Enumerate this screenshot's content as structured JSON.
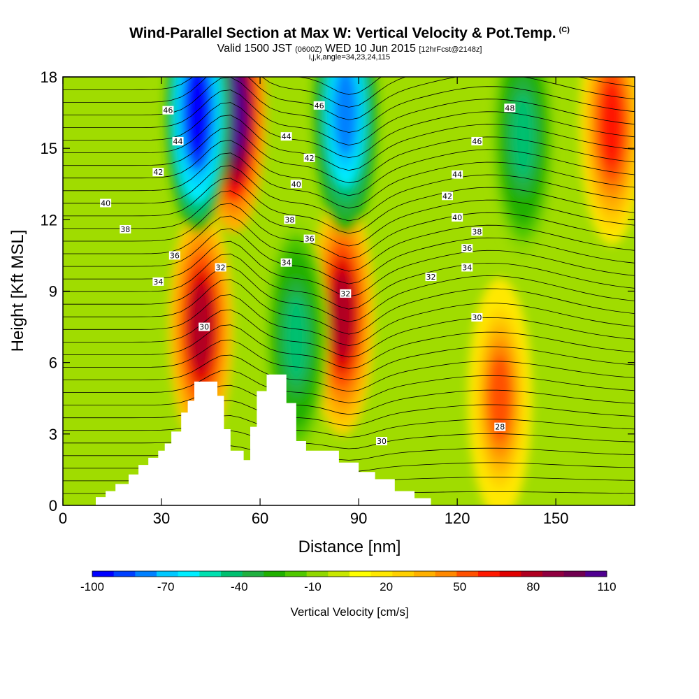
{
  "header": {
    "title": "Wind-Parallel Section at Max W: Vertical Velocity & Pot.Temp.",
    "title_mark": "(C)",
    "subtitle_valid": "Valid 1500 JST",
    "subtitle_utc": "(0600Z)",
    "subtitle_date": "WED 10 Jun 2015",
    "subtitle_fcst": "[12hrFcst@2148z]",
    "subinfo": "i,j,k,angle=34,23,24,115"
  },
  "chart_data": {
    "type": "heatmap",
    "xlabel": "Distance [nm]",
    "ylabel": "Height [Kft MSL]",
    "xlim": [
      0,
      174
    ],
    "ylim": [
      0,
      18
    ],
    "x_ticks": [
      "0",
      "30",
      "60",
      "90",
      "120",
      "150"
    ],
    "y_ticks": [
      "0",
      "3",
      "6",
      "9",
      "12",
      "15",
      "18"
    ],
    "colorbar": {
      "label": "Vertical Velocity [cm/s]",
      "tick_labels": [
        "-100",
        "-70",
        "-40",
        "-10",
        "20",
        "50",
        "80",
        "110"
      ],
      "colors": [
        "#0000ff",
        "#0040ff",
        "#0080ff",
        "#00c8ff",
        "#00eeff",
        "#00e0b0",
        "#00c070",
        "#20b040",
        "#20b000",
        "#50c800",
        "#90d800",
        "#c8e800",
        "#ffff00",
        "#ffe800",
        "#ffd000",
        "#ffb000",
        "#ff8800",
        "#ff5000",
        "#ff1800",
        "#e00000",
        "#b00020",
        "#900040",
        "#700050",
        "#500090"
      ]
    },
    "terrain_kft": [
      [
        0,
        0
      ],
      [
        10,
        0
      ],
      [
        10,
        0.35
      ],
      [
        13,
        0.35
      ],
      [
        13,
        0.6
      ],
      [
        16,
        0.6
      ],
      [
        16,
        0.9
      ],
      [
        20,
        0.9
      ],
      [
        20,
        1.3
      ],
      [
        23,
        1.3
      ],
      [
        23,
        1.7
      ],
      [
        26,
        1.7
      ],
      [
        26,
        2.0
      ],
      [
        29,
        2.0
      ],
      [
        29,
        2.3
      ],
      [
        31,
        2.3
      ],
      [
        31,
        2.6
      ],
      [
        33,
        2.6
      ],
      [
        33,
        3.1
      ],
      [
        36,
        3.1
      ],
      [
        36,
        3.9
      ],
      [
        38,
        3.9
      ],
      [
        38,
        4.4
      ],
      [
        40,
        4.4
      ],
      [
        40,
        5.2
      ],
      [
        47,
        5.2
      ],
      [
        47,
        4.6
      ],
      [
        49,
        4.6
      ],
      [
        49,
        3.2
      ],
      [
        51,
        3.2
      ],
      [
        51,
        2.3
      ],
      [
        55,
        2.3
      ],
      [
        55,
        1.9
      ],
      [
        57,
        1.9
      ],
      [
        57,
        3.3
      ],
      [
        59,
        3.3
      ],
      [
        59,
        4.8
      ],
      [
        62,
        4.8
      ],
      [
        62,
        5.5
      ],
      [
        68,
        5.5
      ],
      [
        68,
        4.3
      ],
      [
        71,
        4.3
      ],
      [
        71,
        2.7
      ],
      [
        74,
        2.7
      ],
      [
        74,
        2.3
      ],
      [
        78,
        2.3
      ],
      [
        78,
        2.3
      ],
      [
        84,
        2.3
      ],
      [
        84,
        1.8
      ],
      [
        90,
        1.8
      ],
      [
        90,
        1.4
      ],
      [
        95,
        1.4
      ],
      [
        95,
        1.1
      ],
      [
        101,
        1.1
      ],
      [
        101,
        0.6
      ],
      [
        107,
        0.6
      ],
      [
        107,
        0.3
      ],
      [
        112,
        0.3
      ],
      [
        112,
        0
      ],
      [
        174,
        0
      ]
    ],
    "updraft_cores": [
      {
        "x": 42,
        "z": 7.5,
        "w": 80
      },
      {
        "x": 52,
        "z": 16.5,
        "w": 110
      },
      {
        "x": 85,
        "z": 8.0,
        "w": 80
      },
      {
        "x": 133,
        "z": 4.5,
        "w": 50
      },
      {
        "x": 167,
        "z": 16.0,
        "w": 60
      }
    ],
    "downdraft_cores": [
      {
        "x": 41,
        "z": 16.5,
        "w": -100
      },
      {
        "x": 86,
        "z": 16.5,
        "w": -80
      },
      {
        "x": 71,
        "z": 7.0,
        "w": -40
      },
      {
        "x": 140,
        "z": 15.5,
        "w": -40
      }
    ],
    "theta_labels": [
      {
        "text": "46",
        "x": 32,
        "z": 16.6
      },
      {
        "text": "44",
        "x": 35,
        "z": 15.3
      },
      {
        "text": "42",
        "x": 29,
        "z": 14.0
      },
      {
        "text": "40",
        "x": 13,
        "z": 12.7
      },
      {
        "text": "38",
        "x": 19,
        "z": 11.6
      },
      {
        "text": "36",
        "x": 34,
        "z": 10.5
      },
      {
        "text": "34",
        "x": 29,
        "z": 9.4
      },
      {
        "text": "32",
        "x": 48,
        "z": 10.0
      },
      {
        "text": "30",
        "x": 43,
        "z": 7.5
      },
      {
        "text": "46",
        "x": 78,
        "z": 16.8
      },
      {
        "text": "44",
        "x": 68,
        "z": 15.5
      },
      {
        "text": "42",
        "x": 75,
        "z": 14.6
      },
      {
        "text": "40",
        "x": 71,
        "z": 13.5
      },
      {
        "text": "38",
        "x": 69,
        "z": 12.0
      },
      {
        "text": "36",
        "x": 75,
        "z": 11.2
      },
      {
        "text": "34",
        "x": 68,
        "z": 10.2
      },
      {
        "text": "32",
        "x": 86,
        "z": 8.9
      },
      {
        "text": "48",
        "x": 136,
        "z": 16.7
      },
      {
        "text": "46",
        "x": 126,
        "z": 15.3
      },
      {
        "text": "44",
        "x": 120,
        "z": 13.9
      },
      {
        "text": "42",
        "x": 117,
        "z": 13.0
      },
      {
        "text": "40",
        "x": 120,
        "z": 12.1
      },
      {
        "text": "38",
        "x": 126,
        "z": 11.5
      },
      {
        "text": "36",
        "x": 123,
        "z": 10.8
      },
      {
        "text": "34",
        "x": 123,
        "z": 10.0
      },
      {
        "text": "32",
        "x": 112,
        "z": 9.6
      },
      {
        "text": "30",
        "x": 126,
        "z": 7.9
      },
      {
        "text": "30",
        "x": 97,
        "z": 2.7
      },
      {
        "text": "28",
        "x": 133,
        "z": 3.3
      }
    ]
  }
}
